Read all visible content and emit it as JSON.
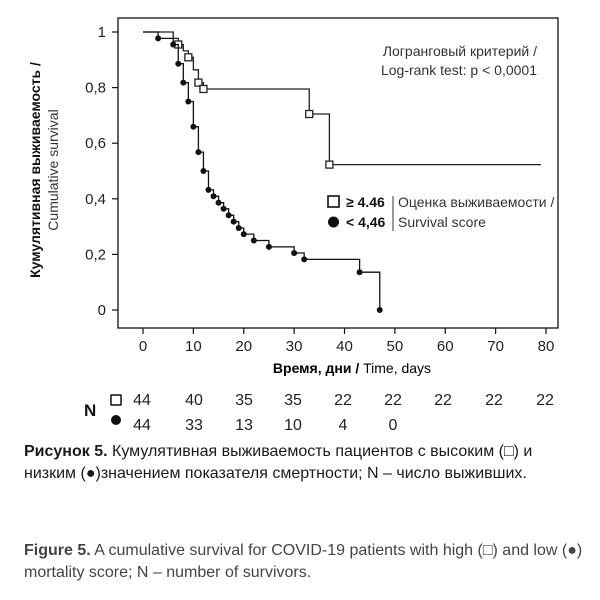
{
  "chart_data": {
    "type": "line",
    "step": true,
    "ylabel_ru": "Кумулятивная выживаемость /",
    "ylabel_en": "Cumulative survival",
    "xlabel_ru": "Время, дни /",
    "xlabel_en": " Time, days",
    "xlim": [
      0,
      80
    ],
    "ylim": [
      0,
      1
    ],
    "x_ticks": [
      "0",
      "10",
      "20",
      "30",
      "40",
      "50",
      "60",
      "70",
      "80"
    ],
    "x_tick_values": [
      0,
      10,
      20,
      30,
      40,
      50,
      60,
      70,
      80
    ],
    "y_ticks": [
      "0",
      "0,2",
      "0,4",
      "0,6",
      "0,8",
      "1"
    ],
    "y_tick_values": [
      0,
      0.2,
      0.4,
      0.6,
      0.8,
      1
    ],
    "annotation": [
      "Логранговый критерий /",
      "Log-rank test: p < 0,0001"
    ],
    "legend_title": [
      "Оценка выживаемости /",
      "Survival score"
    ],
    "series": [
      {
        "name": "≥ 4.46",
        "marker": "square",
        "color": "#222222",
        "x": [
          0,
          6,
          7,
          8,
          9,
          10,
          11,
          12,
          33,
          37,
          79
        ],
        "y": [
          1,
          0.977,
          0.955,
          0.932,
          0.909,
          0.864,
          0.818,
          0.795,
          0.705,
          0.523,
          0.523
        ],
        "marker_x": [
          7,
          9,
          11,
          12,
          33,
          37
        ],
        "marker_y": [
          0.955,
          0.909,
          0.818,
          0.795,
          0.705,
          0.523
        ]
      },
      {
        "name": "< 4,46",
        "marker": "circle",
        "color": "#111111",
        "x": [
          0,
          3,
          6,
          7,
          8,
          9,
          10,
          11,
          12,
          13,
          14,
          15,
          16,
          17,
          18,
          19,
          20,
          22,
          25,
          30,
          32,
          43,
          47
        ],
        "y": [
          1,
          0.977,
          0.955,
          0.886,
          0.818,
          0.75,
          0.659,
          0.568,
          0.5,
          0.432,
          0.409,
          0.386,
          0.364,
          0.341,
          0.318,
          0.295,
          0.273,
          0.25,
          0.227,
          0.205,
          0.182,
          0.136,
          0
        ],
        "marker_x": [
          3,
          6,
          7,
          8,
          9,
          10,
          11,
          12,
          13,
          14,
          15,
          16,
          17,
          18,
          19,
          20,
          22,
          25,
          30,
          32,
          43,
          47
        ],
        "marker_y": [
          0.977,
          0.955,
          0.886,
          0.818,
          0.75,
          0.659,
          0.568,
          0.5,
          0.432,
          0.409,
          0.386,
          0.364,
          0.341,
          0.318,
          0.295,
          0.273,
          0.25,
          0.227,
          0.205,
          0.182,
          0.136,
          0
        ]
      }
    ]
  },
  "risk_table": {
    "label": "N",
    "rows": [
      {
        "marker": "square",
        "values": [
          "44",
          "40",
          "35",
          "35",
          "22",
          "22",
          "22",
          "22",
          "22"
        ]
      },
      {
        "marker": "circle",
        "values": [
          "44",
          "33",
          "13",
          "10",
          "4",
          "0"
        ]
      }
    ]
  },
  "caption_ru": {
    "label": "Рисунок 5.",
    "text": " Кумулятивная выживаемость пациентов с высоким (□) и низким (●)значением показателя смертности; N – число выживших."
  },
  "caption_en": {
    "label": "Figure 5.",
    "text": " A cumulative survival for COVID-19 patients with high (□) and low (●) mortality score; N – number of survivors."
  }
}
